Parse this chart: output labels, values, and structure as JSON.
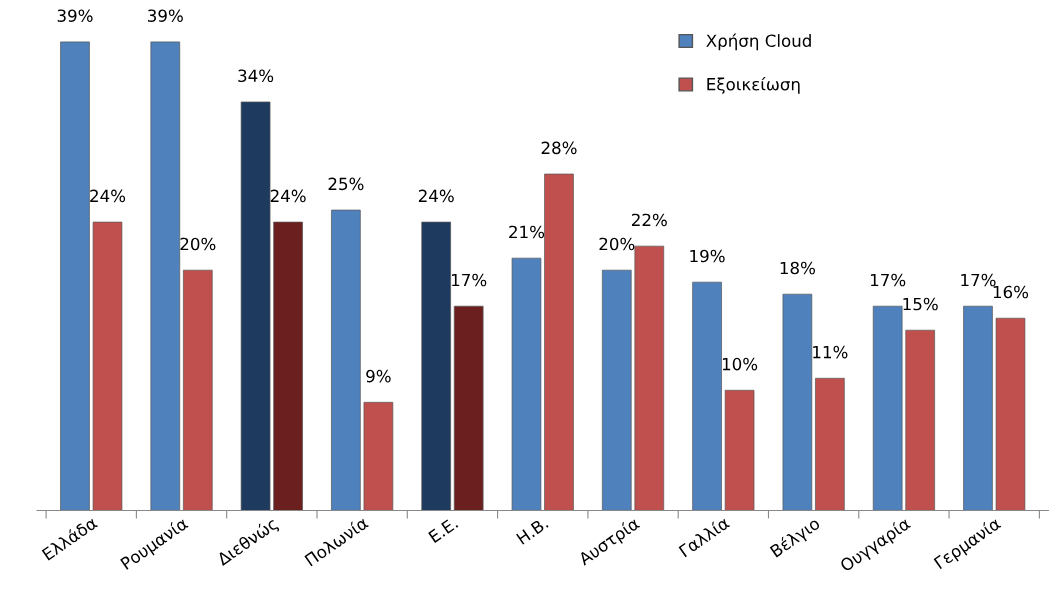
{
  "chart_data": {
    "type": "bar",
    "categories": [
      "Ελλάδα",
      "Ρουμανία",
      "Διεθνώς",
      "Πολωνία",
      "Ε.Ε.",
      "Η.Β.",
      "Αυστρία",
      "Γαλλία",
      "Βέλγιο",
      "Ουγγαρία",
      "Γερμανία"
    ],
    "series": [
      {
        "name": "Χρήση Cloud",
        "color": "#4f81bd",
        "colors": [
          "#4f81bd",
          "#4f81bd",
          "#1f3a5f",
          "#4f81bd",
          "#1f3a5f",
          "#4f81bd",
          "#4f81bd",
          "#4f81bd",
          "#4f81bd",
          "#4f81bd",
          "#4f81bd"
        ],
        "values": [
          39,
          39,
          34,
          25,
          24,
          21,
          20,
          19,
          18,
          17,
          17
        ],
        "value_labels": [
          "39%",
          "39%",
          "34%",
          "25%",
          "24%",
          "21%",
          "20%",
          "19%",
          "18%",
          "17%",
          "17%"
        ]
      },
      {
        "name": "Εξοικείωση",
        "color": "#c0504d",
        "colors": [
          "#c0504d",
          "#c0504d",
          "#6b1f1e",
          "#c0504d",
          "#6b1f1e",
          "#c0504d",
          "#c0504d",
          "#c0504d",
          "#c0504d",
          "#c0504d",
          "#c0504d"
        ],
        "values": [
          24,
          20,
          24,
          9,
          17,
          28,
          22,
          10,
          11,
          15,
          16
        ],
        "value_labels": [
          "24%",
          "20%",
          "24%",
          "9%",
          "17%",
          "28%",
          "22%",
          "10%",
          "11%",
          "15%",
          "16%"
        ]
      }
    ],
    "tick_labels": "x",
    "grid": false,
    "legend": "top right"
  }
}
